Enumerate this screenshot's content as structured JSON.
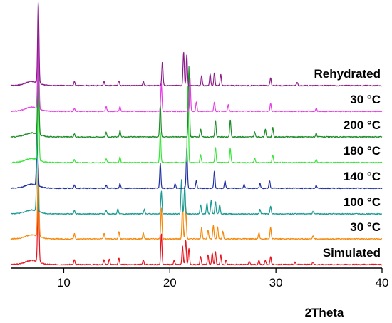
{
  "chart_data": {
    "type": "line",
    "title": "",
    "xlabel": "2Theta",
    "ylabel": "",
    "xlim": [
      5,
      40
    ],
    "xticks": [
      10,
      20,
      30,
      40
    ],
    "grid": false,
    "legend": "none",
    "series": [
      {
        "name": "Simulated",
        "color": "#e8141e",
        "peaks": [
          [
            7.6,
            1.0
          ],
          [
            11.0,
            0.06
          ],
          [
            13.8,
            0.06
          ],
          [
            14.3,
            0.07
          ],
          [
            15.2,
            0.08
          ],
          [
            17.5,
            0.06
          ],
          [
            19.2,
            0.38
          ],
          [
            20.4,
            0.05
          ],
          [
            21.2,
            0.22
          ],
          [
            21.5,
            0.3
          ],
          [
            21.8,
            0.2
          ],
          [
            22.9,
            0.1
          ],
          [
            23.6,
            0.12
          ],
          [
            24.0,
            0.14
          ],
          [
            24.3,
            0.16
          ],
          [
            24.8,
            0.12
          ],
          [
            25.3,
            0.06
          ],
          [
            27.5,
            0.04
          ],
          [
            28.4,
            0.05
          ],
          [
            29.0,
            0.05
          ],
          [
            29.5,
            0.1
          ],
          [
            31.8,
            0.03
          ],
          [
            33.5,
            0.03
          ]
        ]
      },
      {
        "name": "30 °C",
        "color": "#f5880a",
        "peaks": [
          [
            7.6,
            0.95
          ],
          [
            11.0,
            0.07
          ],
          [
            13.8,
            0.07
          ],
          [
            15.2,
            0.1
          ],
          [
            17.5,
            0.08
          ],
          [
            19.2,
            0.4
          ],
          [
            21.2,
            0.45
          ],
          [
            21.5,
            0.42
          ],
          [
            23.0,
            0.15
          ],
          [
            23.6,
            0.12
          ],
          [
            24.1,
            0.18
          ],
          [
            24.5,
            0.16
          ],
          [
            25.0,
            0.1
          ],
          [
            28.4,
            0.08
          ],
          [
            29.5,
            0.15
          ],
          [
            33.5,
            0.04
          ]
        ]
      },
      {
        "name": "100 °C",
        "color": "#1b9b94",
        "peaks": [
          [
            7.5,
            0.95
          ],
          [
            11.0,
            0.05
          ],
          [
            14.0,
            0.05
          ],
          [
            15.1,
            0.07
          ],
          [
            17.6,
            0.06
          ],
          [
            19.2,
            0.3
          ],
          [
            21.1,
            0.45
          ],
          [
            21.4,
            0.38
          ],
          [
            22.9,
            0.12
          ],
          [
            23.5,
            0.14
          ],
          [
            23.9,
            0.18
          ],
          [
            24.3,
            0.16
          ],
          [
            24.7,
            0.12
          ],
          [
            28.5,
            0.06
          ],
          [
            29.5,
            0.1
          ],
          [
            33.5,
            0.03
          ]
        ]
      },
      {
        "name": "140 °C",
        "color": "#1e2fa0",
        "peaks": [
          [
            7.5,
            0.8
          ],
          [
            11.0,
            0.04
          ],
          [
            14.0,
            0.04
          ],
          [
            15.3,
            0.06
          ],
          [
            19.1,
            0.32
          ],
          [
            20.5,
            0.06
          ],
          [
            21.6,
            0.52
          ],
          [
            22.5,
            0.1
          ],
          [
            24.2,
            0.22
          ],
          [
            25.2,
            0.1
          ],
          [
            27.0,
            0.05
          ],
          [
            28.5,
            0.06
          ],
          [
            29.4,
            0.1
          ],
          [
            33.8,
            0.04
          ]
        ]
      },
      {
        "name": "180 °C",
        "color": "#38e63a",
        "peaks": [
          [
            7.6,
            1.0
          ],
          [
            11.0,
            0.04
          ],
          [
            14.0,
            0.05
          ],
          [
            15.3,
            0.07
          ],
          [
            19.1,
            0.38
          ],
          [
            21.7,
            0.95
          ],
          [
            22.9,
            0.1
          ],
          [
            24.3,
            0.2
          ],
          [
            25.7,
            0.18
          ],
          [
            28.0,
            0.06
          ],
          [
            29.7,
            0.1
          ],
          [
            33.8,
            0.04
          ]
        ]
      },
      {
        "name": "200 °C",
        "color": "#1e8c2a",
        "peaks": [
          [
            7.6,
            1.0
          ],
          [
            11.0,
            0.04
          ],
          [
            14.0,
            0.06
          ],
          [
            15.3,
            0.08
          ],
          [
            19.1,
            0.42
          ],
          [
            21.8,
            0.9
          ],
          [
            22.9,
            0.1
          ],
          [
            24.3,
            0.22
          ],
          [
            25.7,
            0.22
          ],
          [
            28.0,
            0.06
          ],
          [
            29.0,
            0.1
          ],
          [
            29.7,
            0.12
          ],
          [
            33.8,
            0.05
          ]
        ]
      },
      {
        "name": "30 °C",
        "color": "#e63ee6",
        "peaks": [
          [
            7.6,
            0.95
          ],
          [
            11.0,
            0.04
          ],
          [
            14.0,
            0.06
          ],
          [
            15.3,
            0.06
          ],
          [
            19.2,
            0.35
          ],
          [
            21.9,
            0.42
          ],
          [
            22.5,
            0.12
          ],
          [
            24.2,
            0.12
          ],
          [
            25.5,
            0.08
          ],
          [
            29.5,
            0.1
          ],
          [
            33.8,
            0.04
          ]
        ]
      },
      {
        "name": "Rehydrated",
        "color": "#8b1d8b",
        "peaks": [
          [
            7.6,
            1.0
          ],
          [
            11.0,
            0.05
          ],
          [
            13.8,
            0.05
          ],
          [
            15.2,
            0.06
          ],
          [
            17.5,
            0.05
          ],
          [
            19.3,
            0.3
          ],
          [
            21.3,
            0.42
          ],
          [
            21.6,
            0.38
          ],
          [
            23.0,
            0.12
          ],
          [
            23.8,
            0.14
          ],
          [
            24.2,
            0.16
          ],
          [
            24.8,
            0.14
          ],
          [
            29.5,
            0.1
          ],
          [
            32.0,
            0.04
          ]
        ]
      }
    ]
  }
}
